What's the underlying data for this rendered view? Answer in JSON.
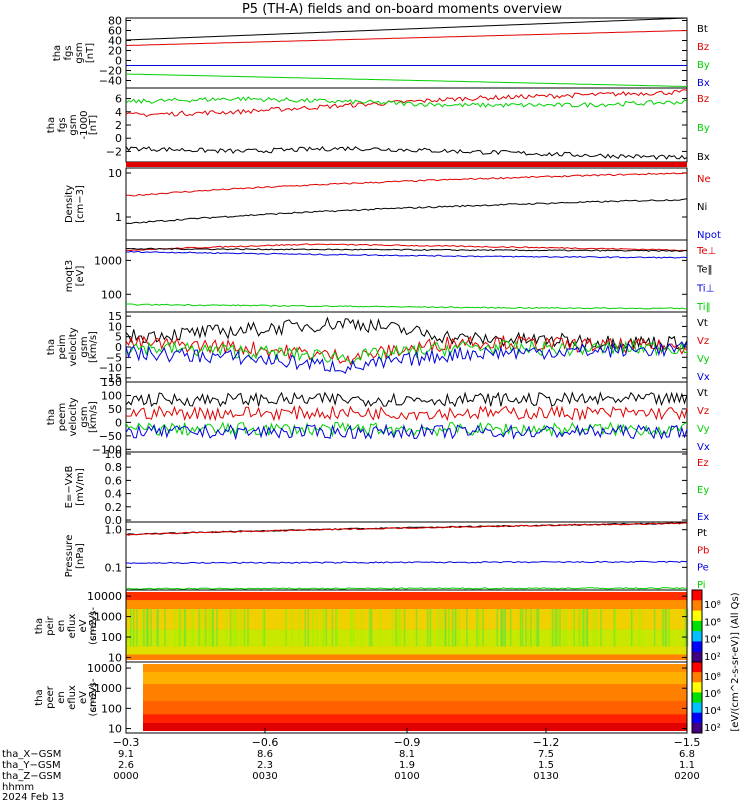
{
  "title": "P5 (TH-A) fields and on-board moments overview",
  "colors": {
    "black": "#000000",
    "red": "#e00000",
    "green": "#00d000",
    "blue": "#0000e0",
    "spec_bg": "#ff8c00"
  },
  "chart_data": [
    {
      "type": "line",
      "panel_labels": [
        "tha",
        "fgs",
        "gsm",
        "[nT]"
      ],
      "ytick_labels": [
        "80",
        "60",
        "40",
        "20",
        "0",
        "−20",
        "−40"
      ],
      "ylim": [
        -55,
        85
      ],
      "legend": [
        "Bt",
        "Bz",
        "By",
        "Bx"
      ],
      "series": [
        {
          "name": "Bt",
          "values": [
            41,
            85
          ]
        },
        {
          "name": "Bz",
          "values": [
            30,
            60
          ]
        },
        {
          "name": "By",
          "values": [
            -27,
            -52
          ]
        },
        {
          "name": "Bx",
          "values": [
            -10,
            -10
          ]
        }
      ]
    },
    {
      "type": "line",
      "panel_labels": [
        "tha",
        "fgs",
        "gsm",
        "-1000",
        "[nT]"
      ],
      "ytick_labels": [
        "6",
        "4",
        "2",
        "0",
        "−2"
      ],
      "ylim": [
        -3.6,
        7.6
      ],
      "legend": [
        "Bz",
        "By",
        "Bx"
      ],
      "series": [
        {
          "name": "Bz",
          "values": [
            3.5,
            4,
            5,
            6,
            6.5,
            7
          ]
        },
        {
          "name": "By",
          "values": [
            5.5,
            6,
            5.5,
            5,
            5,
            5.5
          ]
        },
        {
          "name": "Bx",
          "values": [
            -1.5,
            -2,
            -1.5,
            -2,
            -2.5,
            -3
          ]
        }
      ]
    },
    {
      "type": "line",
      "panel_labels": [
        "Density",
        "[cm−3]"
      ],
      "ytick_labels": [
        "10",
        "1"
      ],
      "ylim": [
        0.3,
        13
      ],
      "scale": "log",
      "legend": [
        "Ne",
        "Ni",
        "Npot"
      ],
      "series": [
        {
          "name": "Ne",
          "values": [
            3.0,
            10.0
          ]
        },
        {
          "name": "Ni",
          "values": [
            0.7,
            2.5
          ]
        }
      ]
    },
    {
      "type": "line",
      "panel_labels": [
        "moqt3",
        "[eV]"
      ],
      "ytick_labels": [
        "1000",
        "100"
      ],
      "ylim": [
        30,
        4000
      ],
      "scale": "log",
      "legend": [
        "Te⊥",
        "Te‖",
        "Ti⊥",
        "Ti‖"
      ],
      "series": [
        {
          "name": "Te⊥",
          "values": [
            2000,
            3000,
            2500,
            2000
          ]
        },
        {
          "name": "Te‖",
          "values": [
            2200,
            2100,
            2000,
            1900
          ]
        },
        {
          "name": "Ti⊥",
          "values": [
            1800,
            1500,
            1300,
            1200
          ]
        },
        {
          "name": "Ti‖",
          "values": [
            50,
            45,
            40,
            38
          ]
        }
      ]
    },
    {
      "type": "line",
      "panel_labels": [
        "tha",
        "peim",
        "velocity",
        "gsm",
        "[km/s]"
      ],
      "ytick_labels": [
        "15",
        "10",
        "5",
        "0",
        "−5",
        "−10",
        "−15"
      ],
      "ylim": [
        -17,
        17
      ],
      "legend": [
        "Vt",
        "Vz",
        "Vy",
        "Vx"
      ],
      "series": [
        {
          "name": "Vt",
          "values": [
            5,
            8,
            12,
            4,
            3,
            2
          ]
        },
        {
          "name": "Vz",
          "values": [
            2,
            0,
            -5,
            3,
            1,
            0
          ]
        },
        {
          "name": "Vy",
          "values": [
            0,
            -2,
            -5,
            0,
            -1,
            0
          ]
        },
        {
          "name": "Vx",
          "values": [
            -3,
            -5,
            -10,
            -3,
            -2,
            -1
          ]
        }
      ]
    },
    {
      "type": "line",
      "panel_labels": [
        "tha",
        "peem",
        "velocity",
        "gsm",
        "[km/s]"
      ],
      "ytick_labels": [
        "150",
        "100",
        "50",
        "0",
        "−50",
        "−100"
      ],
      "ylim": [
        -110,
        150
      ],
      "legend": [
        "Vt",
        "Vz",
        "Vy",
        "Vx"
      ],
      "series": [
        {
          "name": "Vt",
          "values": [
            85,
            85
          ]
        },
        {
          "name": "Vz",
          "values": [
            35,
            35
          ]
        },
        {
          "name": "Vy",
          "values": [
            -25,
            -25
          ]
        },
        {
          "name": "Vx",
          "values": [
            -35,
            -35
          ]
        }
      ]
    },
    {
      "type": "line",
      "panel_labels": [
        "E=−VxB",
        "[mV/m]"
      ],
      "ytick_labels": [
        "1.0",
        "0.8",
        "0.6",
        "0.4",
        "0.2",
        "0.0"
      ],
      "ylim": [
        -0.03,
        1.03
      ],
      "legend": [
        "Ez",
        "Ey",
        "Ex"
      ],
      "series": []
    },
    {
      "type": "line",
      "panel_labels": [
        "Pressure",
        "[nPa]"
      ],
      "ytick_labels": [
        "1.0",
        "0.1"
      ],
      "ylim": [
        0.025,
        1.6
      ],
      "scale": "log",
      "legend": [
        "Pt",
        "Pb",
        "Pe",
        "Pi"
      ],
      "series": [
        {
          "name": "Pt",
          "values": [
            0.75,
            1.5
          ]
        },
        {
          "name": "Pb",
          "values": [
            0.74,
            1.48
          ]
        },
        {
          "name": "Pe",
          "values": [
            0.13,
            0.14
          ]
        },
        {
          "name": "Pi",
          "values": [
            0.027,
            0.028
          ]
        }
      ]
    },
    {
      "type": "heatmap",
      "panel_labels": [
        "tha",
        "peir",
        "en",
        "eflux",
        "eV",
        "(cm2-s-",
        "sr-eV)"
      ],
      "ytick_labels": [
        "10000",
        "1000",
        "100",
        "10"
      ],
      "ylim": [
        6,
        20000
      ],
      "scale": "log"
    },
    {
      "type": "heatmap",
      "panel_labels": [
        "tha",
        "peer",
        "en",
        "eflux",
        "eV",
        "(cm2-s-",
        "sr-eV)"
      ],
      "ytick_labels": [
        "10000",
        "1000",
        "100",
        "10"
      ],
      "ylim": [
        6,
        20000
      ],
      "scale": "log"
    }
  ],
  "colorbars": [
    {
      "ticks": [
        "10⁸",
        "10⁶",
        "10⁴",
        "10²"
      ]
    },
    {
      "ticks": [
        "10⁸",
        "10⁶",
        "10⁴",
        "10²"
      ]
    }
  ],
  "colorbar_label": "[eV/(cm^2-s-sr-eV)] (All Qs)",
  "xaxis": {
    "tick_labels": [
      "−0.3",
      "−0.6",
      "−0.9",
      "−1.2",
      "−1.5"
    ],
    "rows": [
      {
        "label": "tha_X−GSM",
        "values": [
          "9.1",
          "8.6",
          "8.1",
          "7.5",
          "6.8"
        ]
      },
      {
        "label": "tha_Y−GSM",
        "values": [
          "2.6",
          "2.3",
          "1.9",
          "1.5",
          "1.1"
        ]
      },
      {
        "label": "tha_Z−GSM",
        "values": [
          "0000",
          "0030",
          "0100",
          "0130",
          "0200"
        ]
      }
    ],
    "hhmm_label": "hhmm",
    "date_label": "2024 Feb 13"
  }
}
